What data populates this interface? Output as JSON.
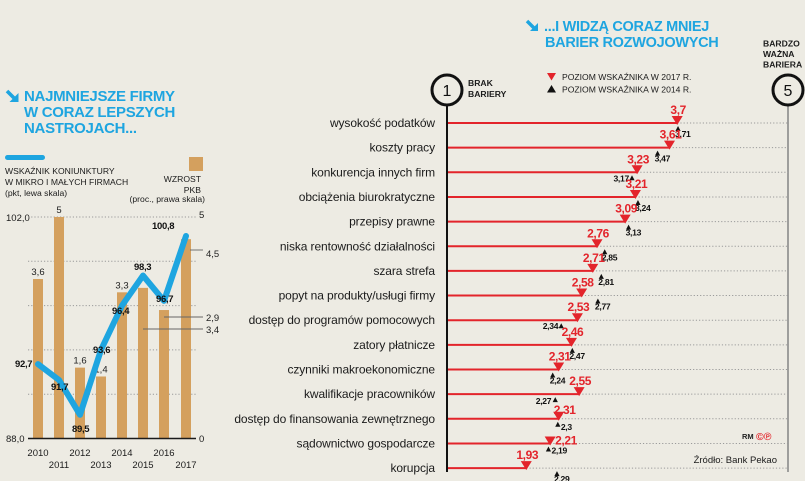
{
  "colors": {
    "background": "#edebe3",
    "accent_cyan": "#1ea5e0",
    "bar": "#d4a05e",
    "red": "#e3242b",
    "text": "#1b1b1b",
    "grid": "#9a9a9a",
    "right_axis": "#8a8a8a"
  },
  "left_panel": {
    "title_icon": "arrow-down-right-icon",
    "title_lines": [
      "NAJMNIEJSZE FIRMY",
      "W CORAZ LEPSZYCH",
      "NASTROJACH..."
    ],
    "legend": {
      "line_series_lines": [
        "WSKAŹNIK KONIUNKTURY",
        "W MIKRO I MAŁYCH FIRMACH",
        "(pkt, lewa skala)"
      ],
      "bar_series_lines": [
        "WZROST",
        "PKB",
        "(proc., prawa skala)"
      ]
    }
  },
  "right_panel": {
    "title_icon": "arrow-down-right-icon",
    "title_lines": [
      "...I WIDZĄ CORAZ MNIEJ",
      "BARIER ROZWOJOWYCH"
    ],
    "scale_min": {
      "value": "1",
      "label_lines": [
        "BRAK",
        "BARIERY"
      ]
    },
    "scale_max": {
      "value": "5",
      "label_lines": [
        "BARDZO",
        "WAŻNA",
        "BARIERA"
      ]
    },
    "legend": [
      "POZIOM WSKAŹNIKA W 2017 R.",
      "POZIOM WSKAŹNIKA W 2014 R."
    ],
    "credit": "RM",
    "credit_symbols": "©℗",
    "source": "Źródło: Bank Pekao"
  },
  "chart_data": [
    {
      "type": "bar",
      "title": "NAJMNIEJSZE FIRMY W CORAZ LEPSZYCH NASTROJACH...",
      "categories": [
        "2010",
        "2011",
        "2012",
        "2013",
        "2014",
        "2015",
        "2016",
        "2017"
      ],
      "series": [
        {
          "name": "Wzrost PKB (proc., prawa skala)",
          "kind": "bar",
          "axis": "right",
          "values": [
            3.6,
            5,
            1.6,
            1.4,
            3.3,
            3.4,
            2.9,
            4.5
          ],
          "labels": [
            "3,6",
            "5",
            "1,6",
            "1,4",
            "3,3",
            "3,4",
            "2,9",
            "4,5"
          ]
        },
        {
          "name": "Wskaźnik koniunktury w mikro i małych firmach (pkt, lewa skala)",
          "kind": "line",
          "axis": "left",
          "values": [
            92.7,
            91.7,
            89.5,
            93.6,
            96.4,
            98.3,
            96.7,
            100.8
          ],
          "labels": [
            "92,7",
            "91,7",
            "89,5",
            "93,6",
            "96,4",
            "98,3",
            "96,7",
            "100,8"
          ]
        }
      ],
      "y_left": {
        "range": [
          88.0,
          102.0
        ],
        "tick_labels": [
          "88,0",
          "102,0"
        ]
      },
      "y_right": {
        "range": [
          0,
          5
        ],
        "tick_labels": [
          "0",
          "5"
        ]
      },
      "xlabel": "",
      "grid": true,
      "legend_position": "top"
    },
    {
      "type": "bar",
      "orientation": "horizontal",
      "title": "...I WIDZĄ CORAZ MNIEJ BARIER ROZWOJOWYCH",
      "categories": [
        "wysokość podatków",
        "koszty pracy",
        "konkurencja innych firm",
        "obciążenia biurokratyczne",
        "przepisy prawne",
        "niska rentowność działalności",
        "szara strefa",
        "popyt na produkty/usługi firmy",
        "dostęp do programów pomocowych",
        "zatory płatnicze",
        "czynniki makroekonomiczne",
        "kwalifikacje pracowników",
        "dostęp do finansowania zewnętrznego",
        "sądownictwo gospodarcze",
        "korupcja"
      ],
      "series": [
        {
          "name": "Poziom wskaźnika w 2017 r.",
          "marker": "triangle-down",
          "values": [
            3.7,
            3.61,
            3.23,
            3.21,
            3.09,
            2.76,
            2.71,
            2.58,
            2.53,
            2.46,
            2.31,
            2.55,
            2.31,
            2.21,
            1.93
          ],
          "labels": [
            "3,7",
            "3,61",
            "3,23",
            "3,21",
            "3,09",
            "2,76",
            "2,71",
            "2,58",
            "2,53",
            "2,46",
            "2,31",
            "2,55",
            "2,31",
            "2,21",
            "1,93"
          ]
        },
        {
          "name": "Poziom wskaźnika w 2014 r.",
          "marker": "triangle-up",
          "values": [
            3.71,
            3.47,
            3.17,
            3.24,
            3.13,
            2.85,
            2.81,
            2.77,
            2.34,
            2.47,
            2.24,
            2.27,
            2.3,
            2.19,
            2.29
          ],
          "labels": [
            "3,71",
            "3,47",
            "3,17",
            "3,24",
            "3,13",
            "2,85",
            "2,81",
            "2,77",
            "2,34",
            "2,47",
            "2,24",
            "2,27",
            "2,3",
            "2,19",
            "2,29"
          ]
        }
      ],
      "xlim": [
        1,
        5
      ],
      "x_min_label": "1 – BRAK BARIERY",
      "x_max_label": "5 – BARDZO WAŻNA BARIERA",
      "grid": false,
      "legend_position": "top"
    }
  ]
}
